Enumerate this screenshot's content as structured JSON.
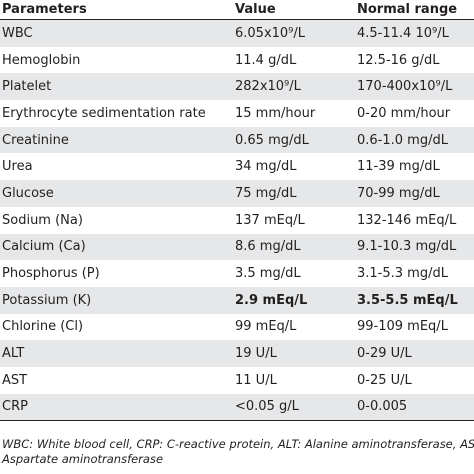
{
  "table": {
    "headers": [
      "Parameters",
      "Value",
      "Normal range"
    ],
    "rows": [
      {
        "param": "WBC",
        "value": "6.05x10⁹/L",
        "range": "4.5-11.4 10⁹/L",
        "bold": false
      },
      {
        "param": "Hemoglobin",
        "value": "11.4 g/dL",
        "range": "12.5-16 g/dL",
        "bold": false
      },
      {
        "param": "Platelet",
        "value": "282x10⁹/L",
        "range": "170-400x10⁹/L",
        "bold": false
      },
      {
        "param": "Erythrocyte sedimentation rate",
        "value": "15 mm/hour",
        "range": "0-20 mm/hour",
        "bold": false
      },
      {
        "param": "Creatinine",
        "value": "0.65 mg/dL",
        "range": "0.6-1.0 mg/dL",
        "bold": false
      },
      {
        "param": "Urea",
        "value": "34 mg/dL",
        "range": "11-39 mg/dL",
        "bold": false
      },
      {
        "param": "Glucose",
        "value": "75 mg/dL",
        "range": "70-99 mg/dL",
        "bold": false
      },
      {
        "param": "Sodium (Na)",
        "value": "137 mEq/L",
        "range": "132-146 mEq/L",
        "bold": false
      },
      {
        "param": "Calcium (Ca)",
        "value": "8.6 mg/dL",
        "range": "9.1-10.3 mg/dL",
        "bold": false
      },
      {
        "param": "Phosphorus (P)",
        "value": "3.5 mg/dL",
        "range": "3.1-5.3 mg/dL",
        "bold": false
      },
      {
        "param": "Potassium (K)",
        "value": "2.9 mEq/L",
        "range": "3.5-5.5 mEq/L",
        "bold": true
      },
      {
        "param": "Chlorine (Cl)",
        "value": "99 mEq/L",
        "range": "99-109 mEq/L",
        "bold": false
      },
      {
        "param": "ALT",
        "value": "19 U/L",
        "range": "0-29 U/L",
        "bold": false
      },
      {
        "param": "AST",
        "value": "11 U/L",
        "range": "0-25 U/L",
        "bold": false
      },
      {
        "param": "CRP",
        "value": "<0.05 g/L",
        "range": "0-0.005",
        "bold": false
      }
    ]
  },
  "footnote": {
    "line1": "WBC: White blood cell, CRP: C-reactive protein, ALT: Alanine aminotransferase, AST:",
    "line2": "Aspartate aminotransferase"
  }
}
